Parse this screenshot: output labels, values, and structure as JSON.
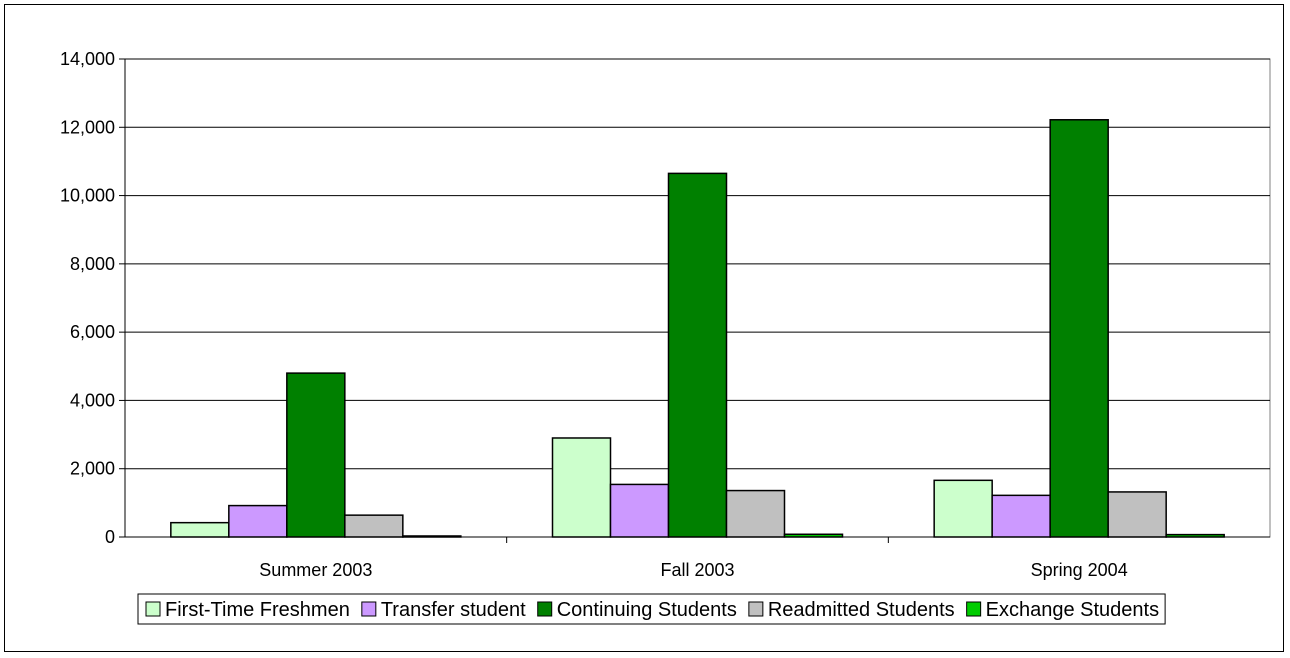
{
  "chart_data": {
    "type": "bar",
    "categories": [
      "Summer 2003",
      "Fall 2003",
      "Spring 2004"
    ],
    "series": [
      {
        "name": "First-Time Freshmen",
        "color": "#ccffcc",
        "values": [
          420,
          2900,
          1660
        ]
      },
      {
        "name": "Transfer student",
        "color": "#cc99ff",
        "values": [
          920,
          1540,
          1220
        ]
      },
      {
        "name": "Continuing Students",
        "color": "#008000",
        "values": [
          4800,
          10650,
          12220
        ]
      },
      {
        "name": "Readmitted Students",
        "color": "#c0c0c0",
        "values": [
          640,
          1360,
          1320
        ]
      },
      {
        "name": "Exchange Students",
        "color": "#00cc00",
        "values": [
          30,
          80,
          70
        ]
      }
    ],
    "yticks": [
      "0",
      "2,000",
      "4,000",
      "6,000",
      "8,000",
      "10,000",
      "12,000",
      "14,000"
    ],
    "ylim": [
      0,
      14000
    ],
    "grid": true,
    "legend_position": "bottom",
    "plot_background": "#ffffff",
    "title": "",
    "xlabel": "",
    "ylabel": ""
  }
}
